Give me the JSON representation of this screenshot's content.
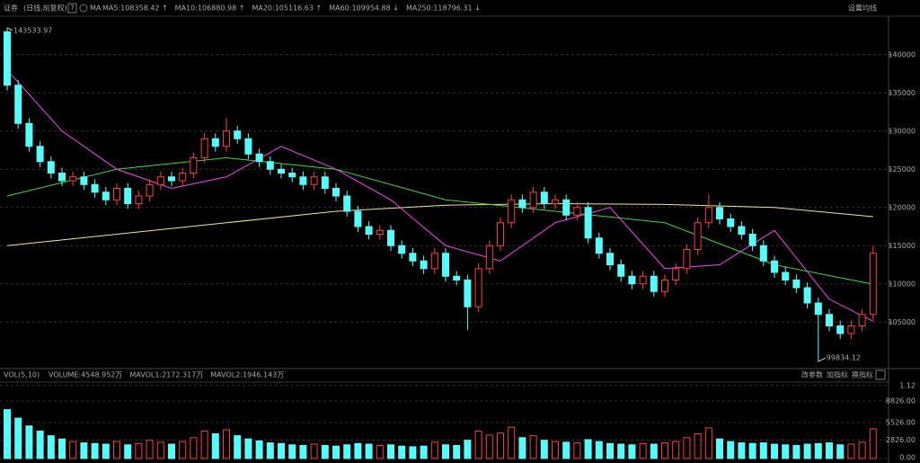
{
  "chart_data": {
    "type": "candlestick",
    "header": {
      "name": "证券",
      "period": "(日线,前复权)",
      "help": "?",
      "ma_label": "MA",
      "ma_items": [
        "MA5:108358.42 ↑",
        "MA10:106880.98 ↑",
        "MA20:105116.63 ↑",
        "MA60:109954.88 ↓",
        "MA250:118796.31 ↓"
      ],
      "ma_colors": [
        "#ffffff",
        "#ffd700",
        "#ff40ff",
        "#33dd33",
        "#f0e68c"
      ],
      "settings": "设置均线"
    },
    "open": [
      143000,
      136000,
      131000,
      128000,
      126000,
      124500,
      123500,
      124000,
      123000,
      122000,
      121000,
      122500,
      120500,
      121500,
      123000,
      124000,
      123500,
      124500,
      126500,
      129000,
      128000,
      130000,
      129000,
      127000,
      126000,
      125000,
      124500,
      124000,
      123000,
      124000,
      122500,
      121500,
      119500,
      117500,
      116500,
      117000,
      115000,
      114000,
      113000,
      112000,
      114000,
      111000,
      110500,
      107000,
      112000,
      115000,
      118000,
      121000,
      120000,
      122000,
      120500,
      121000,
      119000,
      120000,
      116000,
      114000,
      112500,
      111000,
      110000,
      111000,
      109000,
      110500,
      112000,
      114500,
      118000,
      120000,
      118500,
      117500,
      116500,
      115000,
      113000,
      111500,
      110500,
      109500,
      107500,
      106000,
      104500,
      103500,
      104500,
      106000
    ],
    "close": [
      136000,
      131000,
      128000,
      126000,
      124500,
      123500,
      124000,
      123000,
      122000,
      121000,
      122500,
      120500,
      121500,
      123000,
      124000,
      123500,
      124500,
      126500,
      129000,
      128000,
      130000,
      129000,
      127000,
      126000,
      125000,
      124500,
      124000,
      123000,
      124000,
      122500,
      121500,
      119500,
      117500,
      116500,
      117000,
      115000,
      114000,
      113000,
      112000,
      114000,
      111000,
      110500,
      107000,
      112000,
      115000,
      118000,
      121000,
      120000,
      122000,
      120500,
      121000,
      119000,
      120000,
      116000,
      114000,
      112500,
      111000,
      110000,
      111000,
      109000,
      110500,
      112000,
      114500,
      118000,
      120000,
      118500,
      117500,
      116500,
      115000,
      113000,
      111500,
      110500,
      109500,
      107500,
      106000,
      104500,
      103500,
      104500,
      106000,
      114000
    ],
    "high": [
      143533.97,
      136700,
      131700,
      128700,
      126700,
      125200,
      124700,
      124700,
      123700,
      122700,
      123200,
      123200,
      122200,
      123700,
      124700,
      124700,
      125200,
      127200,
      129700,
      129700,
      131700,
      130700,
      129700,
      127700,
      126700,
      125700,
      125200,
      124700,
      124700,
      124700,
      123200,
      122200,
      120200,
      118200,
      117700,
      117700,
      115700,
      114700,
      113700,
      114700,
      114700,
      111700,
      111200,
      112700,
      115700,
      118700,
      121700,
      121700,
      122700,
      122700,
      121700,
      121700,
      120700,
      120700,
      116700,
      114700,
      113200,
      111700,
      111700,
      111700,
      111200,
      112700,
      115200,
      118700,
      121700,
      120700,
      119200,
      118200,
      117200,
      115700,
      113700,
      112200,
      111200,
      110200,
      108200,
      106700,
      105200,
      105200,
      106700,
      115000
    ],
    "low": [
      135300,
      130300,
      127300,
      125300,
      123800,
      122800,
      122800,
      122300,
      121300,
      120300,
      120300,
      119800,
      119800,
      120800,
      122300,
      122800,
      122800,
      123800,
      125800,
      127300,
      127300,
      128300,
      126300,
      125300,
      124300,
      123800,
      123300,
      122300,
      122300,
      121800,
      120800,
      118800,
      116800,
      115800,
      115800,
      114300,
      113300,
      112300,
      111300,
      111300,
      110300,
      109800,
      104000,
      106300,
      111300,
      114300,
      117300,
      119300,
      119300,
      119800,
      119800,
      118300,
      118300,
      115300,
      113300,
      111800,
      110300,
      109300,
      109300,
      108300,
      108300,
      109800,
      111300,
      113800,
      117300,
      117800,
      116800,
      115800,
      114300,
      112300,
      110800,
      109800,
      108800,
      106800,
      99834.12,
      103800,
      102800,
      102800,
      103800,
      105300
    ],
    "up_color": "#ff3c3c",
    "down_color": "#54fcfc",
    "ylim": [
      99500,
      144800
    ],
    "yticks": [
      105000,
      110000,
      115000,
      120000,
      125000,
      130000,
      135000,
      140000
    ],
    "grid": true,
    "annotations": [
      "143533.97",
      "99834.12"
    ],
    "ma_lines": [
      {
        "color": "#f0e68c",
        "x": [
          0,
          10,
          20,
          30,
          40,
          50,
          60,
          70,
          79
        ],
        "values": [
          115000,
          116500,
          118000,
          119500,
          120300,
          120500,
          120400,
          120000,
          118796.31
        ]
      },
      {
        "color": "#33dd33",
        "x": [
          0,
          10,
          20,
          30,
          40,
          50,
          60,
          70,
          79
        ],
        "values": [
          121500,
          125000,
          126500,
          125000,
          121000,
          119500,
          118000,
          112500,
          109954.88
        ]
      },
      {
        "color": "#ff40ff",
        "x": [
          0,
          5,
          10,
          15,
          20,
          25,
          30,
          35,
          40,
          45,
          50,
          55,
          60,
          65,
          70,
          75,
          79
        ],
        "values": [
          138000,
          130000,
          125000,
          122500,
          124000,
          128000,
          125000,
          121000,
          115000,
          113000,
          118000,
          120000,
          112000,
          112500,
          117000,
          108000,
          105116.63
        ]
      }
    ],
    "volume_header": {
      "name": "VOL(5,10)",
      "items": [
        "VOLUME:4548.952万",
        "MAVOL1:2172.317万",
        "MAVOL2:1946.143万"
      ],
      "item_colors": [
        "#ffffff",
        "#ffd700",
        "#ff40ff"
      ],
      "buttons": [
        "改参数",
        "加指标",
        "换指标"
      ]
    },
    "volume": [
      7500,
      6200,
      5000,
      4200,
      3500,
      3000,
      2600,
      2400,
      2300,
      2200,
      2600,
      2100,
      2300,
      2800,
      2500,
      2200,
      2600,
      3200,
      4200,
      3800,
      4400,
      3500,
      3000,
      2700,
      2400,
      2300,
      2100,
      2000,
      2200,
      2000,
      1900,
      2100,
      2300,
      2200,
      2000,
      2100,
      1900,
      1800,
      1900,
      2500,
      2100,
      2000,
      2800,
      4200,
      3600,
      3900,
      4800,
      3200,
      3500,
      2800,
      2600,
      2500,
      2400,
      2900,
      2600,
      2300,
      2200,
      2100,
      2300,
      2200,
      2400,
      2600,
      3200,
      3800,
      4700,
      3000,
      2600,
      2400,
      2300,
      2400,
      2200,
      2100,
      2000,
      2200,
      2300,
      2400,
      2100,
      2200,
      2500,
      4548.952
    ],
    "vol_ylim": [
      0,
      12000
    ],
    "vol_yticks": [
      {
        "value": 0,
        "label": "0.00"
      },
      {
        "value": 2826,
        "label": "2826.00"
      },
      {
        "value": 5526,
        "label": "5526.00"
      },
      {
        "value": 8826,
        "label": "8826.00"
      },
      {
        "value": 11200,
        "label": "1.12"
      }
    ]
  }
}
